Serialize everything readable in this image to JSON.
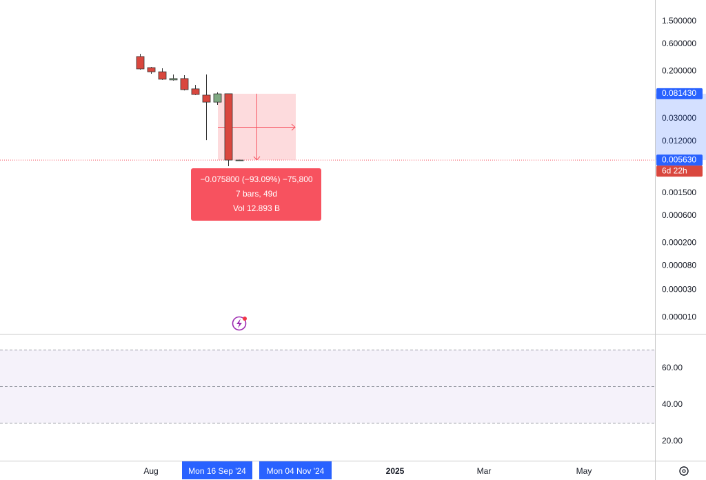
{
  "price_axis": {
    "log_scale": true,
    "ticks": [
      {
        "value": 1.5,
        "label": "1.500000"
      },
      {
        "value": 0.6,
        "label": "0.600000"
      },
      {
        "value": 0.2,
        "label": "0.200000"
      },
      {
        "value": 0.03,
        "label": "0.030000"
      },
      {
        "value": 0.012,
        "label": "0.012000"
      },
      {
        "value": 0.0015,
        "label": "0.001500"
      },
      {
        "value": 0.0006,
        "label": "0.000600"
      },
      {
        "value": 0.0002,
        "label": "0.000200"
      },
      {
        "value": 8e-05,
        "label": "0.000080"
      },
      {
        "value": 3e-05,
        "label": "0.000030"
      },
      {
        "value": 1e-05,
        "label": "0.000010"
      }
    ],
    "markers": [
      {
        "value": 0.08143,
        "label": "0.081430",
        "color": "#2962ff"
      },
      {
        "value": 0.00563,
        "label": "0.005630",
        "color": "#2962ff"
      }
    ],
    "countdown": "6d 22h"
  },
  "candles": [
    {
      "open": 0.364,
      "high": 0.406,
      "low": 0.215,
      "close": 0.221
    },
    {
      "open": 0.233,
      "high": 0.24,
      "low": 0.182,
      "close": 0.197
    },
    {
      "open": 0.197,
      "high": 0.227,
      "low": 0.142,
      "close": 0.146
    },
    {
      "open": 0.142,
      "high": 0.177,
      "low": 0.138,
      "close": 0.15
    },
    {
      "open": 0.15,
      "high": 0.172,
      "low": 0.093,
      "close": 0.096
    },
    {
      "open": 0.099,
      "high": 0.116,
      "low": 0.077,
      "close": 0.079
    },
    {
      "open": 0.077,
      "high": 0.177,
      "low": 0.0126,
      "close": 0.058
    },
    {
      "open": 0.058,
      "high": 0.086,
      "low": 0.052,
      "close": 0.081
    },
    {
      "open": 0.0814,
      "high": 0.0814,
      "low": 0.0044,
      "close": 0.00563
    },
    {
      "open": 0.0056,
      "high": 0.0057,
      "low": 0.0056,
      "close": 0.00563
    }
  ],
  "measure": {
    "lines": [
      "−0.075800 (−93.09%) −75,800",
      "7 bars, 49d",
      "Vol 12.893 B"
    ]
  },
  "time_axis": {
    "labels": [
      "Aug",
      "2025",
      "Mar",
      "May"
    ],
    "highlighted": [
      "Mon 16 Sep '24",
      "Mon 04 Nov '24"
    ]
  },
  "rsi_axis": {
    "ticks": [
      {
        "value": 60,
        "label": "60.00"
      },
      {
        "value": 40,
        "label": "40.00"
      },
      {
        "value": 20,
        "label": "20.00"
      }
    ],
    "band": [
      30,
      70
    ],
    "middle": 50
  }
}
